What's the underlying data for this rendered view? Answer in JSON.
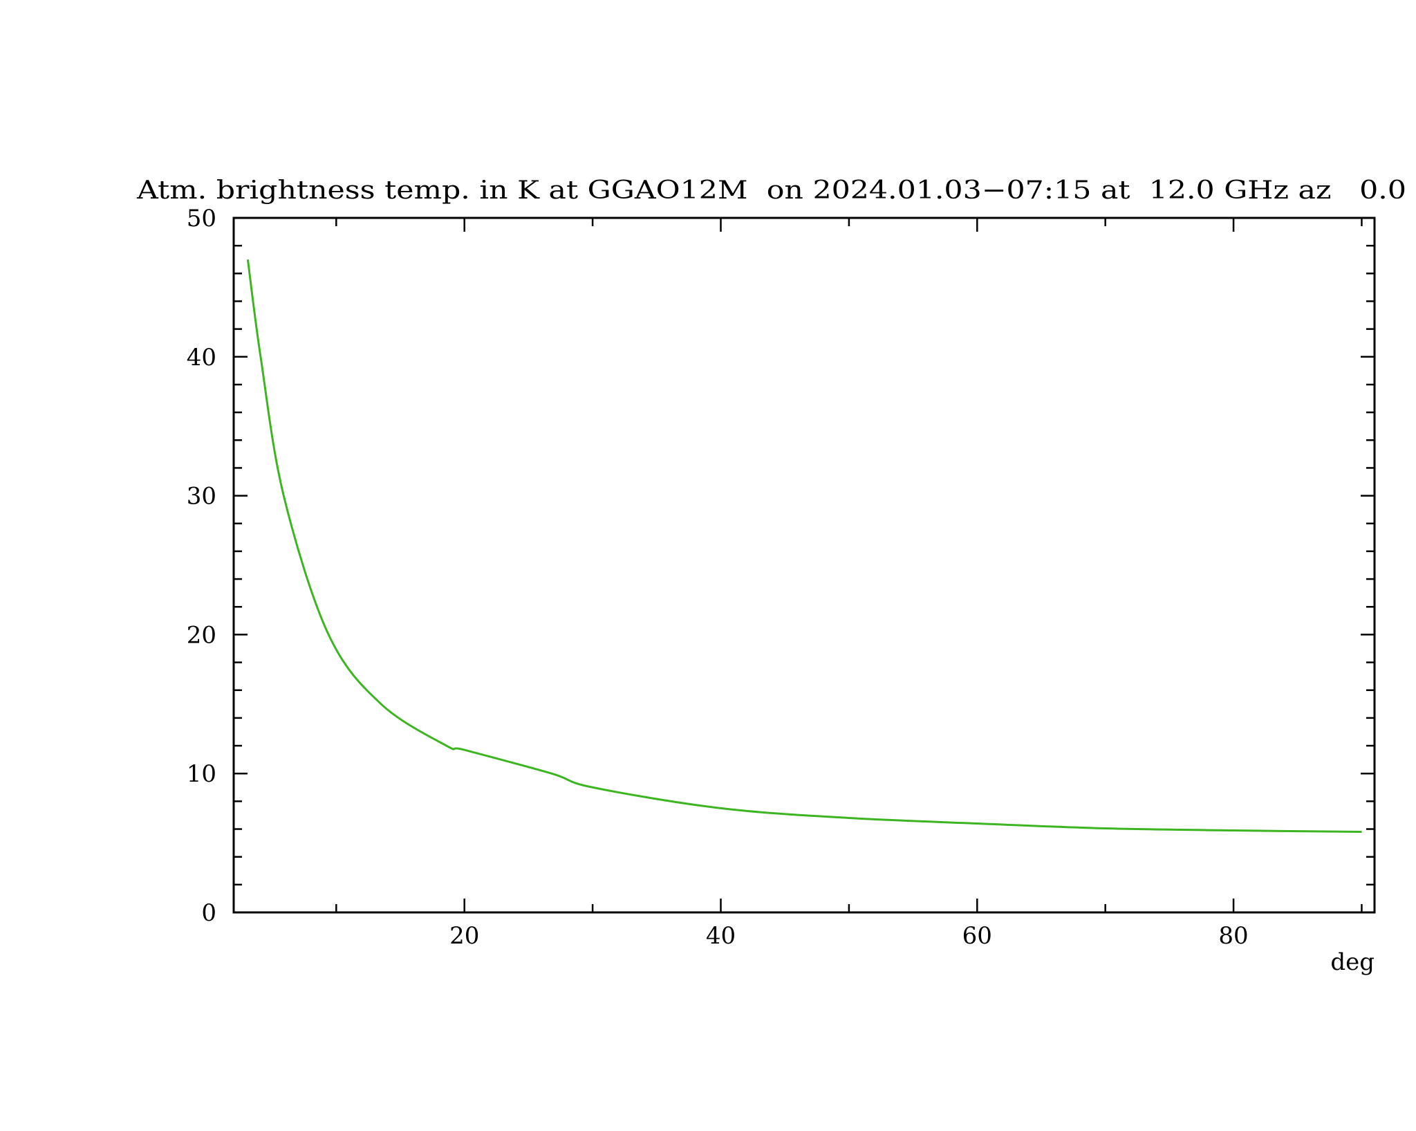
{
  "chart_data": {
    "type": "line",
    "title": "Atm. brightness temp. in K at GGAO12M  on 2024.01.03−07:15 at  12.0 GHz az   0.0",
    "xlabel": "deg",
    "ylabel": "",
    "xlim": [
      2,
      91
    ],
    "ylim": [
      0,
      50
    ],
    "x_ticks": [
      20,
      40,
      60,
      80
    ],
    "x_minor_step": 10,
    "y_ticks": [
      0,
      10,
      20,
      30,
      40,
      50
    ],
    "y_minor_step": 2,
    "grid": false,
    "series": [
      {
        "color": "#3cb521",
        "x": [
          3.1,
          4.1,
          5.9,
          9.4,
          13.5,
          18.6,
          20,
          26.8,
          30,
          40,
          50,
          60,
          70,
          80,
          90
        ],
        "y": [
          47,
          40,
          30,
          20,
          15,
          12,
          11.7,
          10,
          9.0,
          7.5,
          6.8,
          6.4,
          6.05,
          5.9,
          5.8
        ]
      }
    ]
  }
}
